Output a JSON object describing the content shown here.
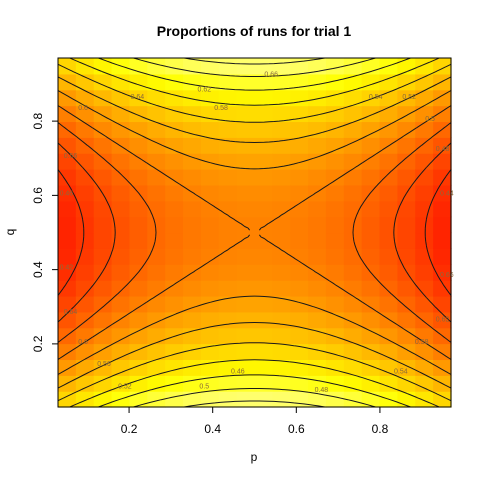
{
  "chart_data": {
    "type": "heatmap",
    "title": "Proportions of runs for trial 1",
    "xlabel": "p",
    "ylabel": "q",
    "xlim": [
      0.03,
      0.97
    ],
    "ylim": [
      0.03,
      0.97
    ],
    "x_ticks": [
      0.2,
      0.4,
      0.6,
      0.8
    ],
    "x_tick_labels": [
      "0.2",
      "0.4",
      "0.6",
      "0.8"
    ],
    "y_ticks": [
      0.2,
      0.4,
      0.6,
      0.8
    ],
    "y_tick_labels": [
      "0.2",
      "0.4",
      "0.6",
      "0.8"
    ],
    "grid": false,
    "legend": "none",
    "colormap": "heat.colors",
    "colors": {
      "low": "#ff0000",
      "mid": "#ff9900",
      "high": "#ffffe0"
    },
    "contour_levels": [
      0.42,
      0.44,
      0.46,
      0.48,
      0.5,
      0.52,
      0.54,
      0.56,
      0.58,
      0.6,
      0.62,
      0.64,
      0.66
    ],
    "contour_labels": [
      "0.66",
      "0.64",
      "0.62",
      "0.6",
      "0.58",
      "0.56",
      "0.54",
      "0.52",
      "0.5",
      "0.48",
      "0.46",
      "0.44",
      "0.42",
      "0.66",
      "0.64",
      "0.62",
      "0.6",
      "0.58",
      "0.56",
      "0.54",
      "0.52",
      "0.5",
      "0.48",
      "0.46"
    ],
    "grid_resolution": 22,
    "value_range": [
      0.4,
      0.68
    ]
  }
}
